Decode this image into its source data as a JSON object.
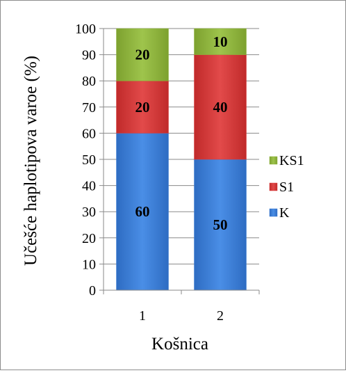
{
  "chart_data": {
    "type": "bar",
    "stacked": true,
    "categories": [
      "1",
      "2"
    ],
    "series": [
      {
        "name": "K",
        "values": [
          60,
          50
        ],
        "color": "#3f7fd6"
      },
      {
        "name": "S1",
        "values": [
          20,
          40
        ],
        "color": "#d93a3a"
      },
      {
        "name": "KS1",
        "values": [
          20,
          10
        ],
        "color": "#8fb33e"
      }
    ],
    "xlabel": "Košnica",
    "ylabel": "Učešće haplotipova varoe (%)",
    "ylim": [
      0,
      100
    ],
    "yticks": [
      0,
      10,
      20,
      30,
      40,
      50,
      60,
      70,
      80,
      90,
      100
    ],
    "grid": true,
    "legend": "right",
    "legend_order": [
      "KS1",
      "S1",
      "K"
    ]
  }
}
